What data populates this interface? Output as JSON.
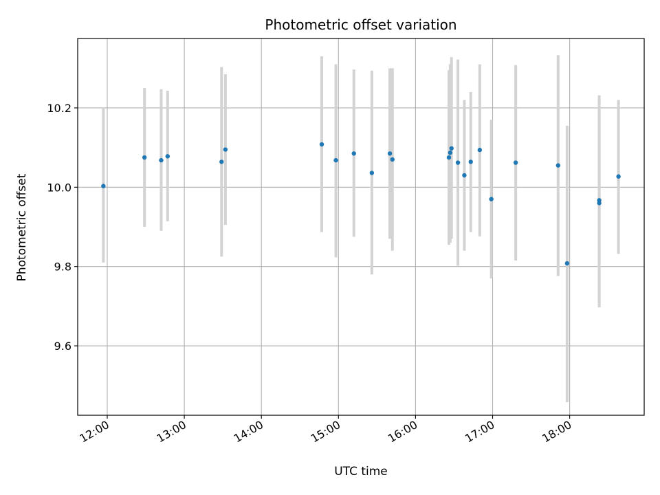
{
  "chart_data": {
    "type": "scatter",
    "title": "Photometric offset variation",
    "xlabel": "UTC time",
    "ylabel": "Photometric offset",
    "xlim": [
      "11:37",
      "18:58"
    ],
    "ylim": [
      9.425,
      10.375
    ],
    "grid": true,
    "x_ticks": [
      "12:00",
      "13:00",
      "14:00",
      "15:00",
      "16:00",
      "17:00",
      "18:00"
    ],
    "y_ticks": [
      "9.6",
      "9.8",
      "10.0",
      "10.2"
    ],
    "marker_color": "#1f77b4",
    "errorbar_color": "#d3d3d3",
    "points": [
      {
        "t": "11:57",
        "y": 10.003,
        "lo": 9.81,
        "hi": 10.2
      },
      {
        "t": "12:29",
        "y": 10.075,
        "lo": 9.9,
        "hi": 10.25
      },
      {
        "t": "12:42",
        "y": 10.068,
        "lo": 9.89,
        "hi": 10.247
      },
      {
        "t": "12:47",
        "y": 10.078,
        "lo": 9.914,
        "hi": 10.243
      },
      {
        "t": "13:29",
        "y": 10.064,
        "lo": 9.825,
        "hi": 10.303
      },
      {
        "t": "13:32",
        "y": 10.095,
        "lo": 9.905,
        "hi": 10.285
      },
      {
        "t": "14:47",
        "y": 10.108,
        "lo": 9.887,
        "hi": 10.33
      },
      {
        "t": "14:58",
        "y": 10.068,
        "lo": 9.823,
        "hi": 10.31
      },
      {
        "t": "15:12",
        "y": 10.085,
        "lo": 9.875,
        "hi": 10.297
      },
      {
        "t": "15:26",
        "y": 10.036,
        "lo": 9.78,
        "hi": 10.294
      },
      {
        "t": "15:40",
        "y": 10.085,
        "lo": 9.87,
        "hi": 10.3
      },
      {
        "t": "15:42",
        "y": 10.07,
        "lo": 9.84,
        "hi": 10.3
      },
      {
        "t": "16:26",
        "y": 10.075,
        "lo": 9.855,
        "hi": 10.295
      },
      {
        "t": "16:27",
        "y": 10.087,
        "lo": 9.86,
        "hi": 10.31
      },
      {
        "t": "16:28",
        "y": 10.098,
        "lo": 9.87,
        "hi": 10.328
      },
      {
        "t": "16:33",
        "y": 10.062,
        "lo": 9.802,
        "hi": 10.322
      },
      {
        "t": "16:38",
        "y": 10.03,
        "lo": 9.84,
        "hi": 10.22
      },
      {
        "t": "16:43",
        "y": 10.064,
        "lo": 9.887,
        "hi": 10.24
      },
      {
        "t": "16:50",
        "y": 10.094,
        "lo": 9.876,
        "hi": 10.31
      },
      {
        "t": "16:59",
        "y": 9.97,
        "lo": 9.77,
        "hi": 10.17
      },
      {
        "t": "17:18",
        "y": 10.062,
        "lo": 9.815,
        "hi": 10.308
      },
      {
        "t": "17:51",
        "y": 10.055,
        "lo": 9.776,
        "hi": 10.333
      },
      {
        "t": "17:58",
        "y": 9.808,
        "lo": 9.458,
        "hi": 10.155
      },
      {
        "t": "18:23",
        "y": 9.96,
        "lo": 9.697,
        "hi": 10.22
      },
      {
        "t": "18:23",
        "y": 9.967,
        "lo": 9.7,
        "hi": 10.232
      },
      {
        "t": "18:38",
        "y": 10.027,
        "lo": 9.832,
        "hi": 10.22
      }
    ]
  }
}
